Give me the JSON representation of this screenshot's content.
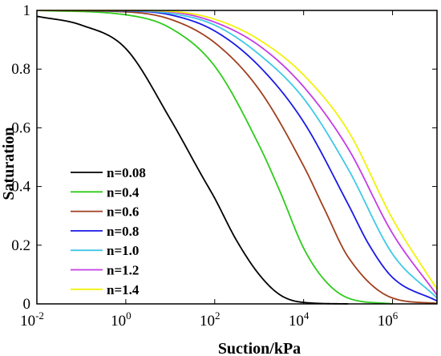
{
  "chart_data": {
    "type": "line",
    "xlabel": "Suction/kPa",
    "ylabel": "Saturation",
    "xscale": "log",
    "xlim": [
      0.01,
      10000000
    ],
    "ylim": [
      0,
      1
    ],
    "x_ticks": [
      {
        "base": "10",
        "exp": "-2",
        "value": 0.01
      },
      {
        "base": "10",
        "exp": "0",
        "value": 1
      },
      {
        "base": "10",
        "exp": "2",
        "value": 100
      },
      {
        "base": "10",
        "exp": "4",
        "value": 10000
      },
      {
        "base": "10",
        "exp": "6",
        "value": 1000000
      }
    ],
    "y_ticks": [
      {
        "label": "0",
        "value": 0
      },
      {
        "label": "0.2",
        "value": 0.2
      },
      {
        "label": "0.4",
        "value": 0.4
      },
      {
        "label": "0.6",
        "value": 0.6
      },
      {
        "label": "0.8",
        "value": 0.8
      },
      {
        "label": "1",
        "value": 1
      }
    ],
    "grid": false,
    "legend_position": "bottom-left",
    "series": [
      {
        "name": "n=0.08",
        "color": "#000000",
        "x": [
          0.01,
          0.1,
          1,
          10,
          50,
          100,
          300,
          1000,
          3000,
          10000,
          100000
        ],
        "y": [
          0.98,
          0.95,
          0.87,
          0.63,
          0.44,
          0.36,
          0.22,
          0.1,
          0.03,
          0.005,
          0
        ]
      },
      {
        "name": "n=0.4",
        "color": "#2ecc1b",
        "x": [
          0.01,
          1,
          10,
          100,
          1000,
          3000,
          10000,
          30000,
          100000,
          1000000
        ],
        "y": [
          1.0,
          0.985,
          0.94,
          0.81,
          0.54,
          0.38,
          0.19,
          0.08,
          0.02,
          0
        ]
      },
      {
        "name": "n=0.6",
        "color": "#a0401f",
        "x": [
          0.01,
          1,
          10,
          100,
          1000,
          10000,
          30000,
          100000,
          1000000,
          10000000
        ],
        "y": [
          1.0,
          0.995,
          0.97,
          0.89,
          0.73,
          0.47,
          0.32,
          0.16,
          0.02,
          0.002
        ]
      },
      {
        "name": "n=0.8",
        "color": "#1a1ae6",
        "x": [
          0.01,
          1,
          10,
          100,
          1000,
          10000,
          100000,
          300000,
          1000000,
          10000000
        ],
        "y": [
          1.0,
          0.998,
          0.985,
          0.93,
          0.81,
          0.62,
          0.34,
          0.2,
          0.09,
          0.01
        ]
      },
      {
        "name": "n=1.0",
        "color": "#3ec9e6",
        "x": [
          0.01,
          1,
          10,
          100,
          1000,
          10000,
          100000,
          1000000,
          10000000
        ],
        "y": [
          1.0,
          0.999,
          0.99,
          0.95,
          0.85,
          0.7,
          0.46,
          0.17,
          0.02
        ]
      },
      {
        "name": "n=1.2",
        "color": "#c43ce6",
        "x": [
          0.01,
          1,
          10,
          100,
          1000,
          10000,
          100000,
          1000000,
          10000000
        ],
        "y": [
          1.0,
          1.0,
          0.995,
          0.96,
          0.88,
          0.74,
          0.53,
          0.24,
          0.03
        ]
      },
      {
        "name": "n=1.4",
        "color": "#f2f20a",
        "x": [
          0.01,
          1,
          10,
          100,
          1000,
          10000,
          100000,
          1000000,
          10000000
        ],
        "y": [
          1.0,
          1.0,
          0.997,
          0.97,
          0.9,
          0.78,
          0.59,
          0.29,
          0.05
        ]
      }
    ]
  }
}
